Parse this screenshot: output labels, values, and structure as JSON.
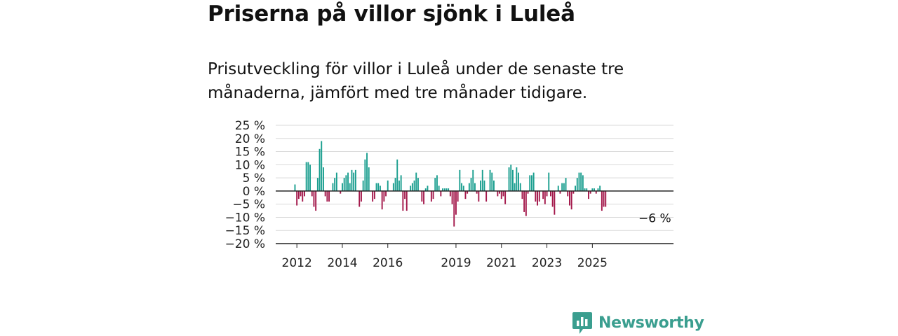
{
  "header": {
    "title": "Priserna på villor sjönk i Luleå",
    "subtitle": "Prisutveckling för villor i Luleå under de senaste tre månaderna, jämfört med tre månader tidigare."
  },
  "brand": {
    "name": "Newsworthy",
    "icon": "newsworthy-logo-icon"
  },
  "colors": {
    "positive": "#1a9e8f",
    "negative": "#a3174a",
    "grid": "#d9d9d9",
    "axis": "#222222"
  },
  "chart_data": {
    "type": "bar",
    "title": "Priserna på villor sjönk i Luleå",
    "subtitle": "Prisutveckling för villor i Luleå under de senaste tre månaderna, jämfört med tre månader tidigare.",
    "xlabel": "",
    "ylabel": "",
    "ylim": [
      -20,
      25
    ],
    "yticks": [
      25,
      20,
      15,
      10,
      5,
      0,
      -5,
      -10,
      -15,
      -20
    ],
    "ytick_labels": [
      "25 %",
      "20 %",
      "15 %",
      "10 %",
      "5 %",
      "0 %",
      "−5 %",
      "−10 %",
      "−15 %",
      "−20 %"
    ],
    "x_tick_labels": [
      "2012",
      "2014",
      "2016",
      "2019",
      "2021",
      "2023",
      "2025"
    ],
    "x_tick_years": [
      2012,
      2014,
      2016,
      2019,
      2021,
      2023,
      2025
    ],
    "x_start": "2011-12",
    "frequency": "monthly",
    "grid": true,
    "annotation": {
      "text": "−6 %"
    },
    "values": [
      2.5,
      -5.5,
      -3,
      -2,
      -4,
      -2,
      11,
      11,
      10,
      -2,
      -6,
      -7.5,
      5,
      16,
      19,
      9,
      -2,
      -4,
      -4,
      0,
      3,
      5,
      7,
      0,
      -1,
      3,
      5,
      6,
      7,
      3,
      8,
      7,
      8,
      0,
      -6,
      -4,
      4,
      12,
      14.5,
      9,
      0,
      -4,
      -3,
      3,
      3,
      2,
      -7,
      -4,
      -2,
      4,
      0,
      0,
      3,
      5,
      12,
      4,
      6,
      -7.5,
      -3,
      -7.5,
      0,
      2,
      3,
      4,
      7,
      5,
      0,
      -4,
      -5,
      1,
      2,
      0,
      -4,
      -3,
      5,
      6,
      2,
      -2,
      1,
      1,
      1,
      1,
      -2,
      -5,
      -13.5,
      -9,
      -4,
      8,
      3,
      2,
      -3,
      -1,
      3,
      5,
      8,
      3,
      -1,
      -4,
      4,
      8,
      4,
      -4,
      0,
      8,
      7,
      4,
      0,
      -2,
      -1,
      -3,
      -2,
      -5,
      0,
      9,
      10,
      8,
      3,
      9,
      7,
      3,
      -3,
      -8,
      -9.5,
      -1,
      6,
      6,
      7,
      -4,
      -5.5,
      -4,
      0,
      -3,
      -5,
      -2,
      7,
      -2,
      -6,
      -9,
      0,
      2,
      -1,
      3,
      3,
      5,
      -2,
      -5.5,
      -7,
      -1,
      2,
      5,
      7,
      7,
      6,
      1,
      1,
      -3,
      -1,
      1,
      1,
      -1,
      1,
      2,
      -7.5,
      -6,
      -6
    ]
  }
}
